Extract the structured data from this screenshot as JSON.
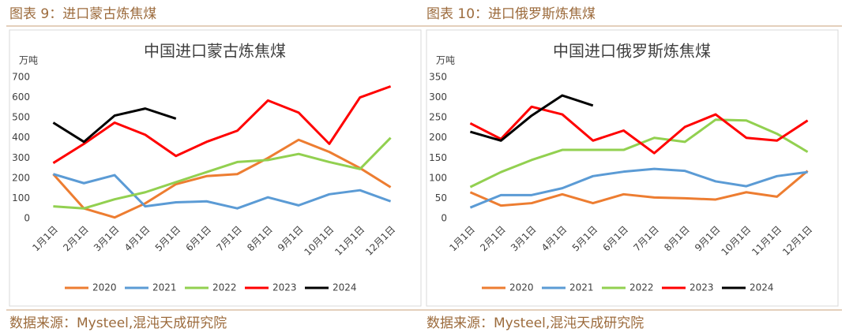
{
  "chart_data": [
    {
      "type": "line",
      "caption": "图表 9：进口蒙古炼焦煤",
      "title": "中国进口蒙古炼焦煤",
      "y_label": "万吨",
      "source": "数据来源：Mysteel,混沌天成研究院",
      "categories": [
        "1月1日",
        "2月1日",
        "3月1日",
        "4月1日",
        "5月1日",
        "6月1日",
        "7月1日",
        "8月1日",
        "9月1日",
        "10月1日",
        "11月1日",
        "12月1日"
      ],
      "ylim": [
        0,
        700
      ],
      "yticks": [
        0,
        100,
        200,
        300,
        400,
        500,
        600,
        700
      ],
      "grid": false,
      "series": [
        {
          "name": "2020",
          "color": "#ED7D31",
          "values": [
            220,
            50,
            5,
            75,
            170,
            210,
            220,
            300,
            390,
            330,
            250,
            155
          ]
        },
        {
          "name": "2021",
          "color": "#5B9BD5",
          "values": [
            220,
            175,
            215,
            60,
            80,
            85,
            50,
            105,
            65,
            120,
            140,
            85
          ]
        },
        {
          "name": "2022",
          "color": "#92D050",
          "values": [
            60,
            50,
            95,
            130,
            180,
            230,
            280,
            290,
            320,
            280,
            245,
            400
          ]
        },
        {
          "name": "2023",
          "color": "#FF0000",
          "values": [
            275,
            370,
            475,
            415,
            310,
            380,
            435,
            585,
            525,
            370,
            600,
            655
          ]
        },
        {
          "name": "2024",
          "color": "#000000",
          "values": [
            475,
            380,
            510,
            545,
            495,
            null,
            null,
            null,
            null,
            null,
            null,
            null
          ]
        }
      ]
    },
    {
      "type": "line",
      "caption": "图表 10：进口俄罗斯炼焦煤",
      "title": "中国进口俄罗斯炼焦煤",
      "y_label": "万吨",
      "source": "数据来源：Mysteel,混沌天成研究院",
      "categories": [
        "1月1日",
        "2月1日",
        "3月1日",
        "4月1日",
        "5月1日",
        "6月1日",
        "7月1日",
        "8月1日",
        "9月1日",
        "10月1日",
        "11月1日",
        "12月1日"
      ],
      "ylim": [
        0,
        350
      ],
      "yticks": [
        0,
        50,
        100,
        150,
        200,
        250,
        300,
        350
      ],
      "grid": false,
      "series": [
        {
          "name": "2020",
          "color": "#ED7D31",
          "values": [
            65,
            32,
            38,
            60,
            38,
            60,
            52,
            50,
            47,
            65,
            54,
            118
          ]
        },
        {
          "name": "2021",
          "color": "#5B9BD5",
          "values": [
            27,
            58,
            58,
            75,
            105,
            116,
            123,
            118,
            92,
            80,
            105,
            115
          ]
        },
        {
          "name": "2022",
          "color": "#92D050",
          "values": [
            78,
            115,
            145,
            170,
            170,
            170,
            200,
            190,
            245,
            243,
            210,
            165
          ]
        },
        {
          "name": "2023",
          "color": "#FF0000",
          "values": [
            236,
            197,
            277,
            258,
            193,
            218,
            162,
            227,
            258,
            200,
            193,
            243
          ]
        },
        {
          "name": "2024",
          "color": "#000000",
          "values": [
            215,
            193,
            255,
            305,
            280,
            null,
            null,
            null,
            null,
            null,
            null,
            null
          ]
        }
      ]
    }
  ]
}
